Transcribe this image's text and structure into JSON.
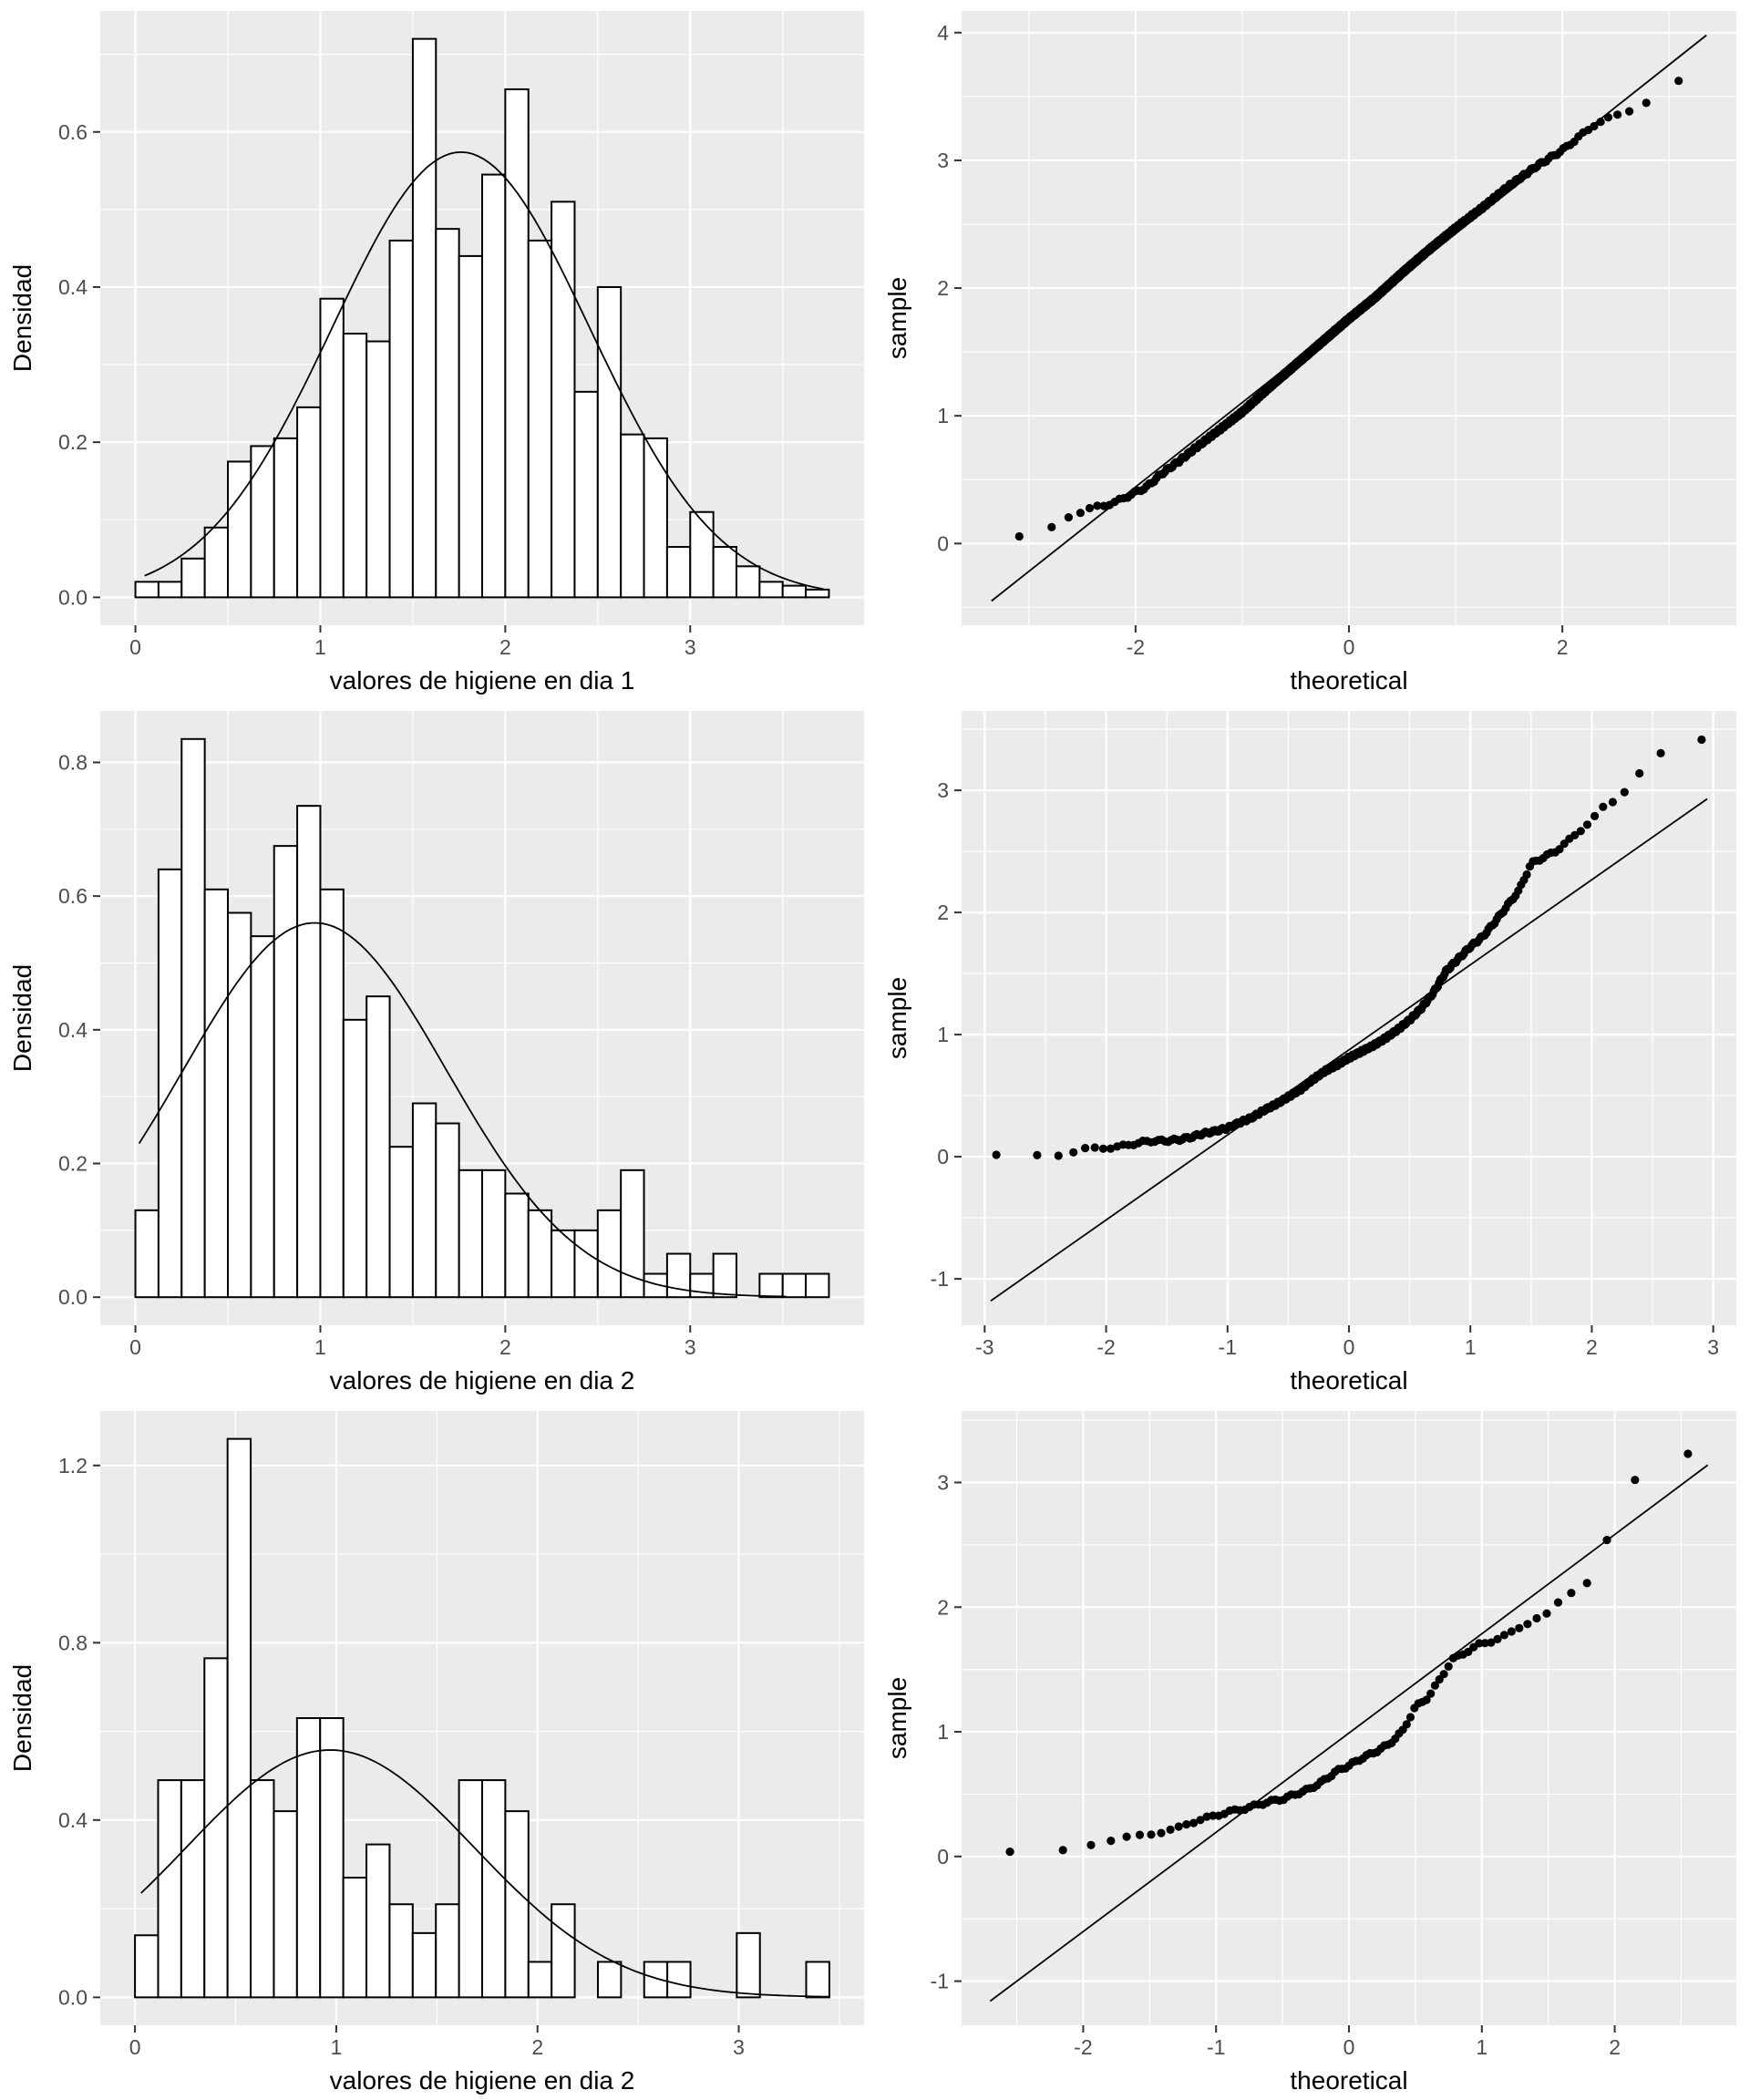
{
  "styles": {
    "panel_bg": "#EBEBEB",
    "grid_major_color": "#FFFFFF",
    "grid_minor_color": "#FFFFFF",
    "bar_fill": "#FFFFFF",
    "bar_stroke": "#000000",
    "curve_color": "#000000",
    "point_color": "#000000",
    "ref_line_color": "#000000",
    "tick_label_color": "#4D4D4D",
    "tick_mark_color": "#333333",
    "axis_title_color": "#000000"
  },
  "chart_data": [
    {
      "type": "histogram",
      "xlabel": "valores de higiene en dia 1",
      "ylabel": "Densidad",
      "bin_start": 0,
      "bin_width": 0.125,
      "heights": [
        0.02,
        0.02,
        0.05,
        0.09,
        0.175,
        0.195,
        0.205,
        0.245,
        0.385,
        0.34,
        0.33,
        0.46,
        0.72,
        0.475,
        0.44,
        0.545,
        0.655,
        0.46,
        0.51,
        0.265,
        0.4,
        0.21,
        0.205,
        0.065,
        0.11,
        0.065,
        0.04,
        0.02,
        0.015,
        0.01
      ],
      "curve": {
        "shape": "normal-density",
        "mean": 1.76,
        "sd": 0.695,
        "peak": 0.574,
        "from": 0.05,
        "to": 3.72
      },
      "x_domain": [
        -0.19,
        3.94
      ],
      "y_domain": [
        -0.036,
        0.756
      ],
      "x_ticks": [
        0,
        1,
        2,
        3
      ],
      "x_tick_labels": [
        "0",
        "1",
        "2",
        "3"
      ],
      "x_minor": [
        0.5,
        1.5,
        2.5,
        3.5
      ],
      "y_ticks": [
        0,
        0.2,
        0.4,
        0.6
      ],
      "y_tick_labels": [
        "0.0",
        "0.2",
        "0.4",
        "0.6"
      ],
      "y_minor": [
        0.1,
        0.3,
        0.5,
        0.7
      ]
    },
    {
      "type": "qq",
      "xlabel": "theoretical",
      "ylabel": "sample",
      "n_points": 600,
      "qq_anchors": [
        [
          -3.3,
          0.02
        ],
        [
          -3.05,
          0.05
        ],
        [
          -2.9,
          0.11
        ],
        [
          -2.75,
          0.13
        ],
        [
          -2.62,
          0.22
        ],
        [
          -2.5,
          0.25
        ],
        [
          -2.35,
          0.29
        ],
        [
          -2.2,
          0.32
        ],
        [
          -2.05,
          0.38
        ],
        [
          -1.9,
          0.44
        ],
        [
          -1.75,
          0.55
        ],
        [
          -1.6,
          0.64
        ],
        [
          -1.45,
          0.74
        ],
        [
          -1.2,
          0.9
        ],
        [
          -1.0,
          1.03
        ],
        [
          -0.75,
          1.22
        ],
        [
          -0.5,
          1.4
        ],
        [
          -0.25,
          1.58
        ],
        [
          0,
          1.76
        ],
        [
          0.25,
          1.93
        ],
        [
          0.5,
          2.12
        ],
        [
          0.75,
          2.3
        ],
        [
          1.0,
          2.47
        ],
        [
          1.25,
          2.63
        ],
        [
          1.5,
          2.8
        ],
        [
          1.75,
          2.95
        ],
        [
          2.0,
          3.08
        ],
        [
          2.15,
          3.18
        ],
        [
          2.3,
          3.28
        ],
        [
          2.5,
          3.35
        ],
        [
          2.7,
          3.42
        ],
        [
          2.9,
          3.5
        ],
        [
          3.1,
          3.62
        ],
        [
          3.3,
          3.68
        ]
      ],
      "ref_line": {
        "x1": -3.35,
        "y1": -0.45,
        "x2": 3.35,
        "y2": 3.98
      },
      "x_domain": [
        -3.63,
        3.63
      ],
      "y_domain": [
        -0.64,
        4.17
      ],
      "x_ticks": [
        -2,
        0,
        2
      ],
      "x_tick_labels": [
        "-2",
        "0",
        "2"
      ],
      "x_minor": [
        -3,
        -1,
        1,
        3
      ],
      "y_ticks": [
        0,
        1,
        2,
        3,
        4
      ],
      "y_tick_labels": [
        "0",
        "1",
        "2",
        "3",
        "4"
      ],
      "y_minor": [
        -0.5,
        0.5,
        1.5,
        2.5,
        3.5
      ]
    },
    {
      "type": "histogram",
      "xlabel": "valores de higiene en dia 2",
      "ylabel": "Densidad",
      "bin_start": 0,
      "bin_width": 0.125,
      "heights": [
        0.13,
        0.64,
        0.835,
        0.61,
        0.575,
        0.54,
        0.675,
        0.735,
        0.61,
        0.415,
        0.45,
        0.225,
        0.29,
        0.26,
        0.19,
        0.19,
        0.155,
        0.13,
        0.1,
        0.1,
        0.13,
        0.19,
        0.035,
        0.065,
        0.035,
        0.065,
        0,
        0.035,
        0.035,
        0.035
      ],
      "curve": {
        "shape": "normal-density",
        "mean": 0.97,
        "sd": 0.712,
        "peak": 0.56,
        "from": 0.02,
        "to": 3.52
      },
      "x_domain": [
        -0.19,
        3.94
      ],
      "y_domain": [
        -0.042,
        0.877
      ],
      "x_ticks": [
        0,
        1,
        2,
        3
      ],
      "x_tick_labels": [
        "0",
        "1",
        "2",
        "3"
      ],
      "x_minor": [
        0.5,
        1.5,
        2.5,
        3.5
      ],
      "y_ticks": [
        0,
        0.2,
        0.4,
        0.6,
        0.8
      ],
      "y_tick_labels": [
        "0.0",
        "0.2",
        "0.4",
        "0.6",
        "0.8"
      ],
      "y_minor": [
        0.1,
        0.3,
        0.5,
        0.7
      ]
    },
    {
      "type": "qq",
      "xlabel": "theoretical",
      "ylabel": "sample",
      "n_points": 300,
      "qq_anchors": [
        [
          -2.9,
          0.005
        ],
        [
          -2.55,
          0.01
        ],
        [
          -2.35,
          0.02
        ],
        [
          -2.2,
          0.06
        ],
        [
          -2.05,
          0.07
        ],
        [
          -1.9,
          0.08
        ],
        [
          -1.8,
          0.1
        ],
        [
          -1.7,
          0.12
        ],
        [
          -1.6,
          0.13
        ],
        [
          -1.5,
          0.13
        ],
        [
          -1.4,
          0.14
        ],
        [
          -1.3,
          0.16
        ],
        [
          -1.2,
          0.19
        ],
        [
          -1.1,
          0.21
        ],
        [
          -1.0,
          0.235
        ],
        [
          -0.9,
          0.28
        ],
        [
          -0.8,
          0.32
        ],
        [
          -0.7,
          0.38
        ],
        [
          -0.6,
          0.43
        ],
        [
          -0.5,
          0.49
        ],
        [
          -0.4,
          0.55
        ],
        [
          -0.3,
          0.63
        ],
        [
          -0.2,
          0.7
        ],
        [
          -0.1,
          0.75
        ],
        [
          0,
          0.81
        ],
        [
          0.1,
          0.86
        ],
        [
          0.2,
          0.91
        ],
        [
          0.3,
          0.97
        ],
        [
          0.4,
          1.04
        ],
        [
          0.5,
          1.12
        ],
        [
          0.6,
          1.22
        ],
        [
          0.7,
          1.35
        ],
        [
          0.8,
          1.52
        ],
        [
          0.9,
          1.62
        ],
        [
          1.0,
          1.72
        ],
        [
          1.1,
          1.8
        ],
        [
          1.2,
          1.92
        ],
        [
          1.3,
          2.05
        ],
        [
          1.4,
          2.18
        ],
        [
          1.5,
          2.4
        ],
        [
          1.6,
          2.45
        ],
        [
          1.7,
          2.5
        ],
        [
          1.8,
          2.58
        ],
        [
          1.9,
          2.67
        ],
        [
          2.0,
          2.75
        ],
        [
          2.1,
          2.87
        ],
        [
          2.2,
          2.93
        ],
        [
          2.3,
          3.02
        ],
        [
          2.45,
          3.2
        ],
        [
          2.6,
          3.32
        ],
        [
          2.9,
          3.42
        ]
      ],
      "ref_line": {
        "x1": -2.95,
        "y1": -1.18,
        "x2": 2.95,
        "y2": 2.93
      },
      "x_domain": [
        -3.19,
        3.19
      ],
      "y_domain": [
        -1.38,
        3.65
      ],
      "x_ticks": [
        -3,
        -2,
        -1,
        0,
        1,
        2,
        3
      ],
      "x_tick_labels": [
        "-3",
        "-2",
        "-1",
        "0",
        "1",
        "2",
        "3"
      ],
      "x_minor": [
        -2.5,
        -1.5,
        -0.5,
        0.5,
        1.5,
        2.5
      ],
      "y_ticks": [
        -1,
        0,
        1,
        2,
        3
      ],
      "y_tick_labels": [
        "-1",
        "0",
        "1",
        "2",
        "3"
      ],
      "y_minor": [
        -0.5,
        0.5,
        1.5,
        2.5,
        3.5
      ]
    },
    {
      "type": "histogram",
      "xlabel": "valores de higiene en dia 2",
      "ylabel": "Densidad",
      "bin_start": 0,
      "bin_width": 0.115,
      "heights": [
        0.14,
        0.49,
        0.49,
        0.765,
        1.26,
        0.49,
        0.42,
        0.63,
        0.63,
        0.27,
        0.345,
        0.21,
        0.145,
        0.21,
        0.49,
        0.49,
        0.42,
        0.08,
        0.21,
        0,
        0.08,
        0,
        0.08,
        0.08,
        0,
        0,
        0.145,
        0,
        0,
        0.08
      ],
      "curve": {
        "shape": "normal-density",
        "mean": 0.97,
        "sd": 0.715,
        "peak": 0.558,
        "from": 0.03,
        "to": 3.45
      },
      "x_domain": [
        -0.1725,
        3.6225
      ],
      "y_domain": [
        -0.063,
        1.323
      ],
      "x_ticks": [
        0,
        1,
        2,
        3
      ],
      "x_tick_labels": [
        "0",
        "1",
        "2",
        "3"
      ],
      "x_minor": [
        0.5,
        1.5,
        2.5,
        3.5
      ],
      "y_ticks": [
        0,
        0.4,
        0.8,
        1.2
      ],
      "y_tick_labels": [
        "0.0",
        "0.4",
        "0.8",
        "1.2"
      ],
      "y_minor": [
        0.2,
        0.6,
        1.0
      ]
    },
    {
      "type": "qq",
      "xlabel": "theoretical",
      "ylabel": "sample",
      "n_points": 95,
      "qq_anchors": [
        [
          -2.65,
          0.03
        ],
        [
          -2.25,
          0.02
        ],
        [
          -2.0,
          0.09
        ],
        [
          -1.85,
          0.12
        ],
        [
          -1.75,
          0.14
        ],
        [
          -1.6,
          0.16
        ],
        [
          -1.5,
          0.18
        ],
        [
          -1.4,
          0.2
        ],
        [
          -1.3,
          0.22
        ],
        [
          -1.2,
          0.27
        ],
        [
          -1.1,
          0.3
        ],
        [
          -1.0,
          0.33
        ],
        [
          -0.9,
          0.36
        ],
        [
          -0.8,
          0.38
        ],
        [
          -0.7,
          0.41
        ],
        [
          -0.6,
          0.44
        ],
        [
          -0.5,
          0.46
        ],
        [
          -0.4,
          0.5
        ],
        [
          -0.3,
          0.54
        ],
        [
          -0.2,
          0.6
        ],
        [
          -0.1,
          0.68
        ],
        [
          0,
          0.73
        ],
        [
          0.1,
          0.79
        ],
        [
          0.2,
          0.84
        ],
        [
          0.3,
          0.9
        ],
        [
          0.4,
          1.0
        ],
        [
          0.5,
          1.2
        ],
        [
          0.6,
          1.28
        ],
        [
          0.7,
          1.45
        ],
        [
          0.78,
          1.58
        ],
        [
          0.88,
          1.64
        ],
        [
          0.98,
          1.7
        ],
        [
          1.08,
          1.73
        ],
        [
          1.18,
          1.77
        ],
        [
          1.28,
          1.84
        ],
        [
          1.38,
          1.89
        ],
        [
          1.48,
          1.93
        ],
        [
          1.58,
          2.05
        ],
        [
          1.68,
          2.13
        ],
        [
          1.78,
          2.17
        ],
        [
          1.85,
          2.3
        ],
        [
          1.95,
          2.55
        ],
        [
          2.05,
          2.7
        ],
        [
          2.15,
          3.02
        ],
        [
          2.35,
          3.02
        ],
        [
          2.65,
          3.35
        ]
      ],
      "ref_line": {
        "x1": -2.7,
        "y1": -1.16,
        "x2": 2.7,
        "y2": 3.14
      },
      "x_domain": [
        -2.915,
        2.915
      ],
      "y_domain": [
        -1.354,
        3.574
      ],
      "x_ticks": [
        -2,
        -1,
        0,
        1,
        2
      ],
      "x_tick_labels": [
        "-2",
        "-1",
        "0",
        "1",
        "2"
      ],
      "x_minor": [
        -2.5,
        -1.5,
        -0.5,
        0.5,
        1.5,
        2.5
      ],
      "y_ticks": [
        -1,
        0,
        1,
        2,
        3
      ],
      "y_tick_labels": [
        "-1",
        "0",
        "1",
        "2",
        "3"
      ],
      "y_minor": [
        -0.5,
        0.5,
        1.5,
        2.5,
        3.5
      ]
    }
  ]
}
